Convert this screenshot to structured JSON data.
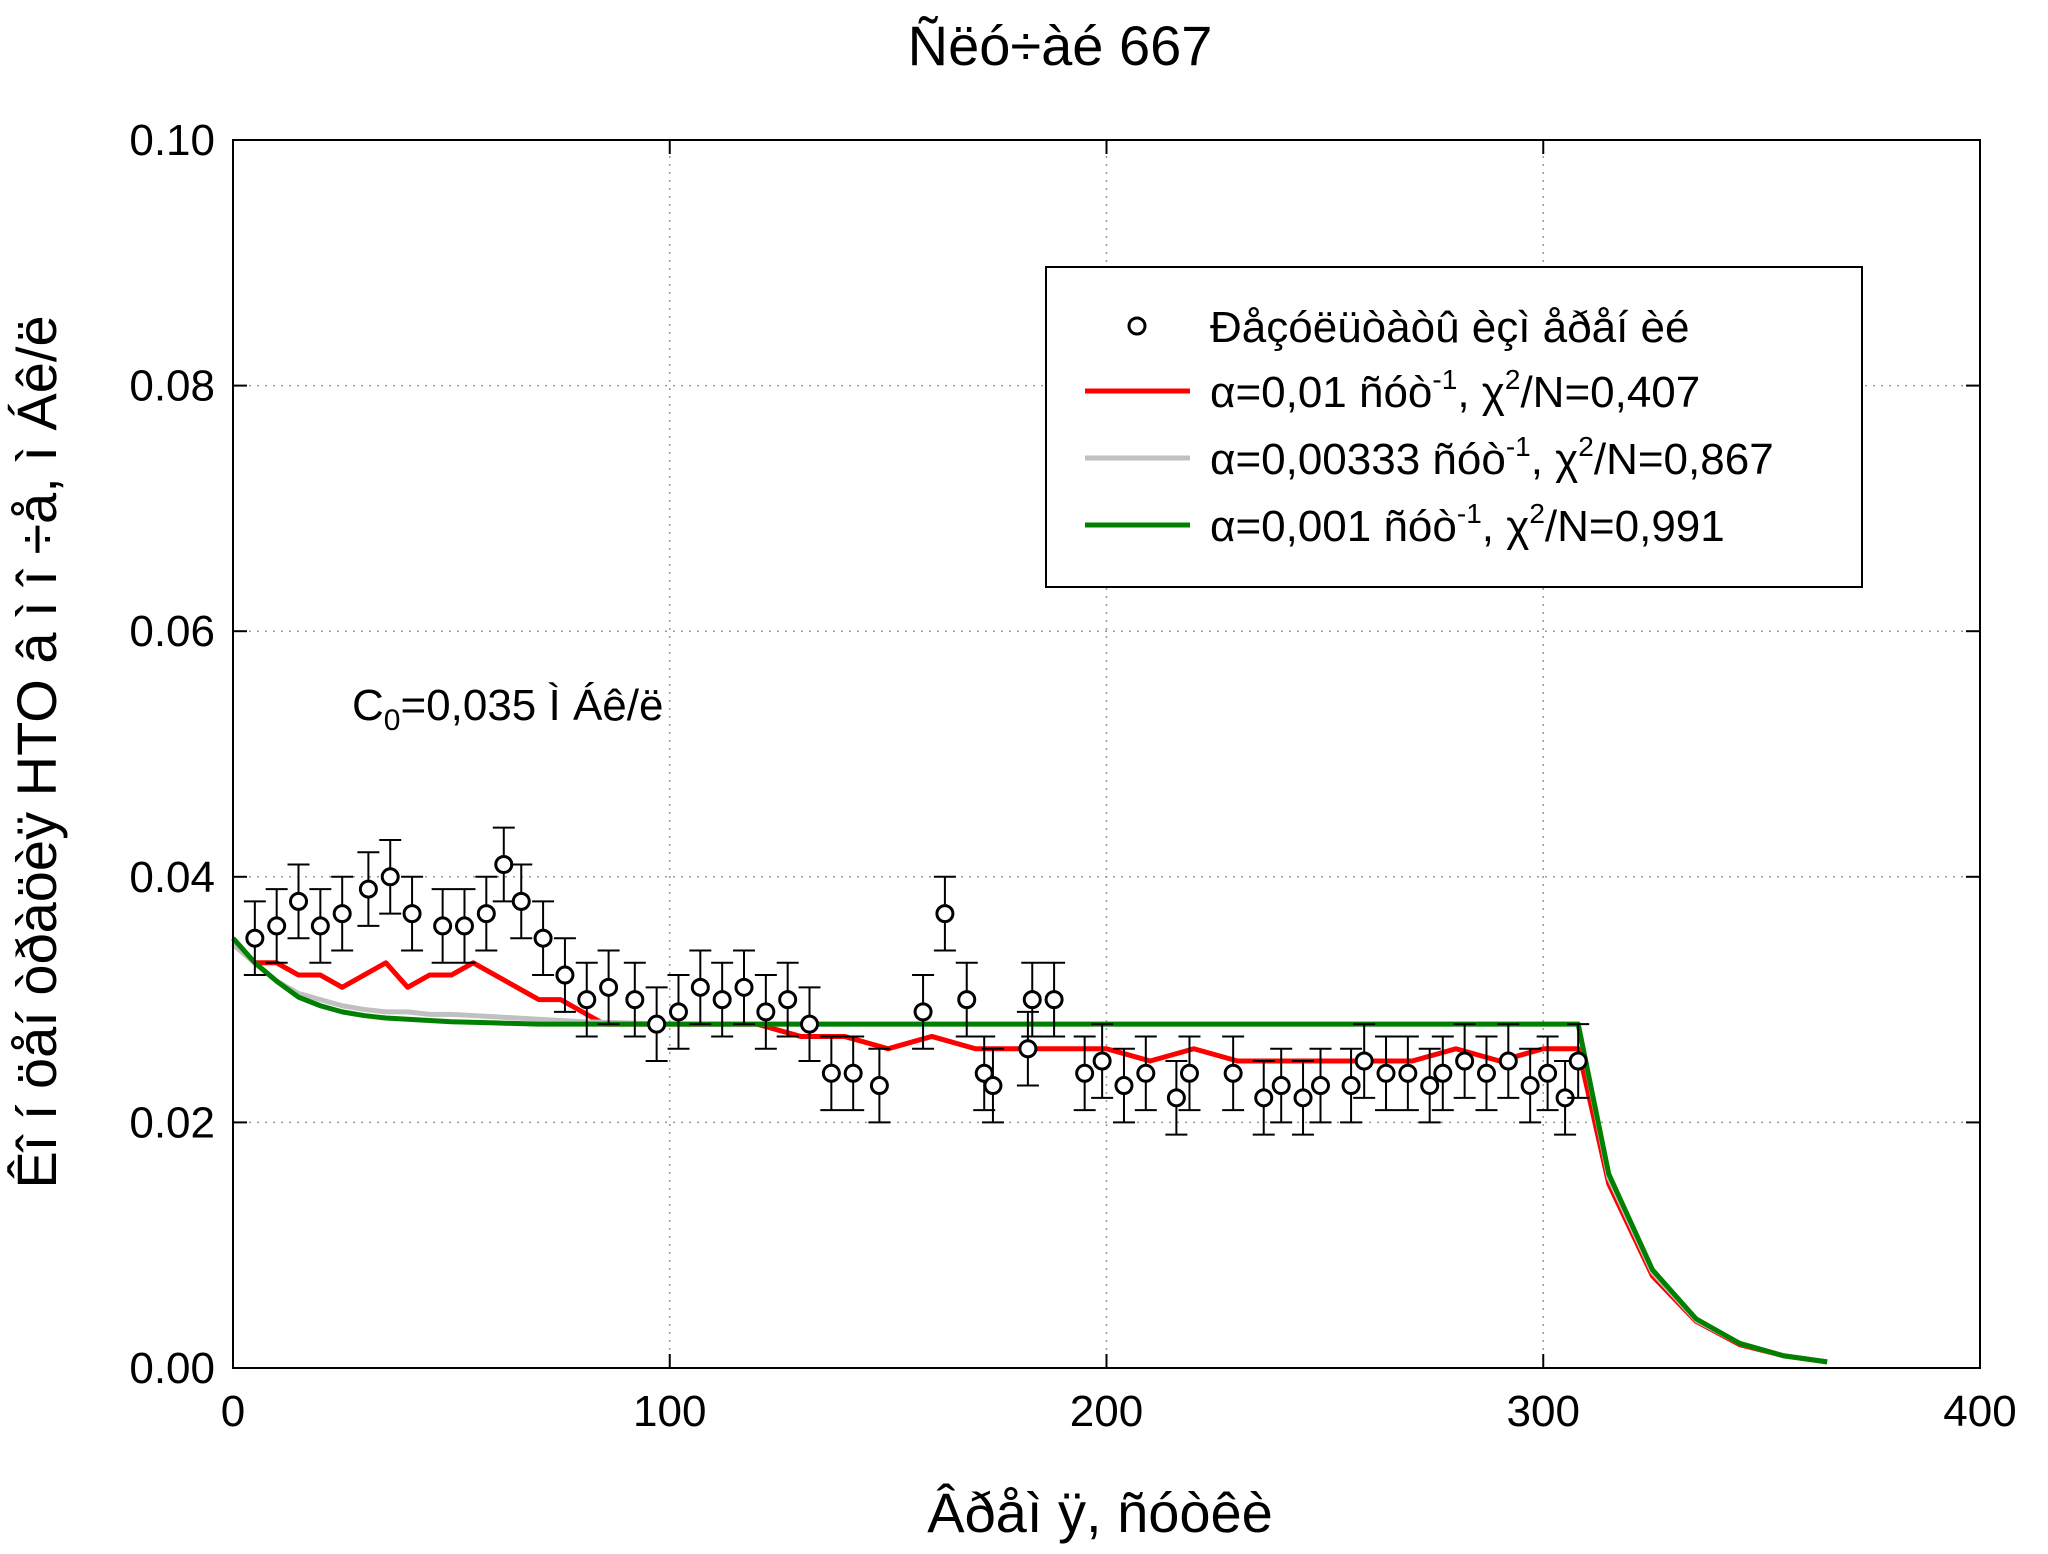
{
  "chart_data": {
    "type": "line",
    "title": "Ñëó÷àé 667",
    "xlabel": "Âðåì ÿ, ñóòêè",
    "ylabel": "Êî í öåí òðàöèÿ HTO â ì î ÷å, ì Áê/ë",
    "xlim": [
      0,
      400
    ],
    "ylim": [
      0,
      0.1
    ],
    "xticks": [
      "0",
      "100",
      "200",
      "300",
      "400"
    ],
    "yticks": [
      "0.00",
      "0.02",
      "0.04",
      "0.06",
      "0.08",
      "0.10"
    ],
    "grid": true,
    "legend_position": "top-right",
    "annotation": {
      "prefix": "C",
      "subscript": "0",
      "suffix": "=0,035 Ì Áê/ë"
    },
    "measurements": {
      "name": "Ðåçóëüòàòû èçì åðåí èé",
      "marker": "open-circle",
      "x": [
        5,
        10,
        15,
        20,
        25,
        31,
        36,
        41,
        48,
        53,
        58,
        62,
        66,
        71,
        76,
        81,
        86,
        92,
        97,
        102,
        107,
        112,
        117,
        122,
        127,
        132,
        137,
        142,
        148,
        158,
        163,
        168,
        172,
        174,
        182,
        183,
        188,
        195,
        199,
        204,
        209,
        216,
        219,
        229,
        236,
        240,
        245,
        249,
        256,
        259,
        264,
        269,
        274,
        277,
        282,
        287,
        292,
        297,
        301,
        305,
        308
      ],
      "y": [
        0.035,
        0.036,
        0.038,
        0.036,
        0.037,
        0.039,
        0.04,
        0.037,
        0.036,
        0.036,
        0.037,
        0.041,
        0.038,
        0.035,
        0.032,
        0.03,
        0.031,
        0.03,
        0.028,
        0.029,
        0.031,
        0.03,
        0.031,
        0.029,
        0.03,
        0.028,
        0.024,
        0.024,
        0.023,
        0.029,
        0.037,
        0.03,
        0.024,
        0.023,
        0.026,
        0.03,
        0.03,
        0.024,
        0.025,
        0.023,
        0.024,
        0.022,
        0.024,
        0.024,
        0.022,
        0.023,
        0.022,
        0.023,
        0.023,
        0.025,
        0.024,
        0.024,
        0.023,
        0.024,
        0.025,
        0.024,
        0.025,
        0.023,
        0.024,
        0.022,
        0.025
      ],
      "error": 0.003
    },
    "series": [
      {
        "name_prefix": "α=0,01 ñóò",
        "exp": "-1",
        "name_mid": ", χ",
        "exp2": "2",
        "name_suffix": "/N=0,407",
        "color": "#ff0000",
        "x": [
          0,
          5,
          10,
          15,
          20,
          25,
          30,
          35,
          40,
          45,
          50,
          55,
          60,
          65,
          70,
          75,
          80,
          85,
          90,
          95,
          100,
          110,
          120,
          130,
          140,
          150,
          160,
          170,
          180,
          190,
          200,
          210,
          220,
          230,
          240,
          250,
          260,
          270,
          280,
          290,
          300,
          305,
          308,
          315,
          325,
          335,
          345,
          355,
          365
        ],
        "y": [
          0.0345,
          0.033,
          0.033,
          0.032,
          0.032,
          0.031,
          0.032,
          0.033,
          0.031,
          0.032,
          0.032,
          0.033,
          0.032,
          0.031,
          0.03,
          0.03,
          0.029,
          0.028,
          0.028,
          0.028,
          0.028,
          0.028,
          0.028,
          0.027,
          0.027,
          0.026,
          0.027,
          0.026,
          0.026,
          0.026,
          0.026,
          0.025,
          0.026,
          0.025,
          0.025,
          0.025,
          0.025,
          0.025,
          0.026,
          0.025,
          0.026,
          0.026,
          0.026,
          0.015,
          0.0075,
          0.0038,
          0.0019,
          0.001,
          0.0005
        ]
      },
      {
        "name_prefix": "α=0,00333 ñóò",
        "exp": "-1",
        "name_mid": ", χ",
        "exp2": "2",
        "name_suffix": "/N=0,867",
        "color": "#c0c0c0",
        "x": [
          0,
          5,
          10,
          15,
          20,
          25,
          30,
          35,
          40,
          45,
          50,
          55,
          60,
          70,
          80,
          90,
          100,
          150,
          200,
          250,
          300,
          308,
          315,
          325,
          335,
          345,
          355,
          365
        ],
        "y": [
          0.0345,
          0.033,
          0.0315,
          0.0305,
          0.03,
          0.0295,
          0.0292,
          0.029,
          0.029,
          0.0288,
          0.0288,
          0.0287,
          0.0286,
          0.0284,
          0.0282,
          0.0281,
          0.028,
          0.028,
          0.028,
          0.028,
          0.028,
          0.028,
          0.0155,
          0.0078,
          0.0039,
          0.002,
          0.001,
          0.0005
        ]
      },
      {
        "name_prefix": "α=0,001 ñóò",
        "exp": "-1",
        "name_mid": ", χ",
        "exp2": "2",
        "name_suffix": "/N=0,991",
        "color": "#008000",
        "x": [
          0,
          5,
          10,
          15,
          20,
          25,
          30,
          35,
          40,
          45,
          50,
          60,
          70,
          80,
          90,
          100,
          150,
          200,
          250,
          300,
          308,
          315,
          325,
          335,
          345,
          355,
          365
        ],
        "y": [
          0.035,
          0.033,
          0.0315,
          0.0302,
          0.0295,
          0.029,
          0.0287,
          0.0285,
          0.0284,
          0.0283,
          0.0282,
          0.0281,
          0.028,
          0.028,
          0.028,
          0.028,
          0.028,
          0.028,
          0.028,
          0.028,
          0.028,
          0.0158,
          0.008,
          0.004,
          0.002,
          0.001,
          0.0005
        ]
      }
    ]
  }
}
